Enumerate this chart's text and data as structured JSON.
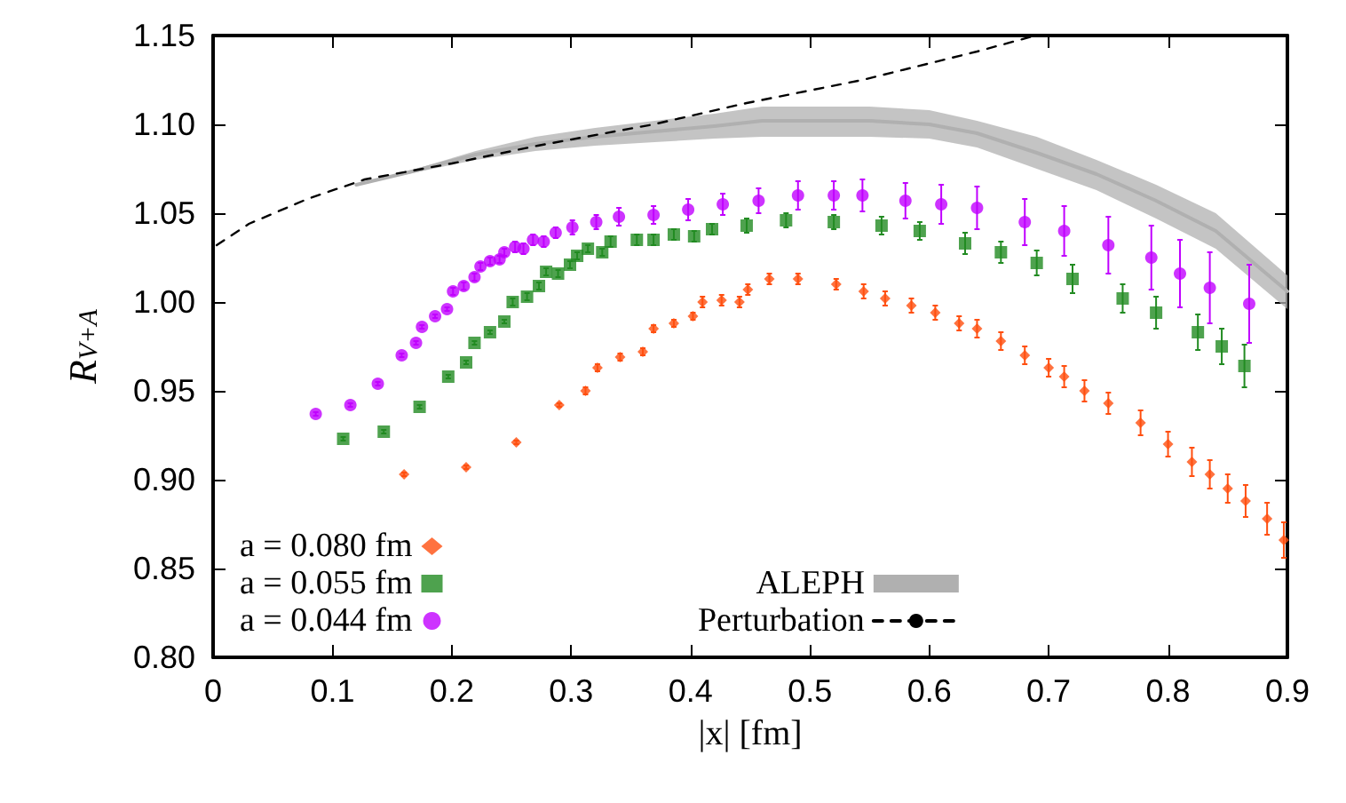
{
  "chart_data": {
    "type": "scatter",
    "xlabel": "|x| [fm]",
    "ylabel": "R$_{V+A}$",
    "xlim": [
      0,
      0.9
    ],
    "xticks": [
      0,
      0.1,
      0.2,
      0.3,
      0.4,
      0.5,
      0.6,
      0.7,
      0.8,
      0.9
    ],
    "ylim": [
      0.8,
      1.15
    ],
    "yticks": [
      {
        "value": 0.8,
        "label": "0.80"
      },
      {
        "value": 0.85,
        "label": "0.85"
      },
      {
        "value": 0.9,
        "label": "0.90"
      },
      {
        "value": 0.95,
        "label": "0.95"
      },
      {
        "value": 1.0,
        "label": "1.00"
      },
      {
        "value": 1.05,
        "label": "1.05"
      },
      {
        "value": 1.1,
        "label": "1.10"
      },
      {
        "value": 1.15,
        "label": "1.15"
      }
    ],
    "grid": false,
    "legend": "bottom left",
    "series": [
      {
        "name": "a = 0.080 fm",
        "color": "#ff4f0f",
        "marker": "diamond",
        "x": [
          0.16,
          0.212,
          0.254,
          0.29,
          0.312,
          0.322,
          0.341,
          0.36,
          0.369,
          0.386,
          0.402,
          0.41,
          0.426,
          0.441,
          0.448,
          0.466,
          0.49,
          0.522,
          0.545,
          0.563,
          0.585,
          0.605,
          0.625,
          0.64,
          0.66,
          0.68,
          0.7,
          0.713,
          0.73,
          0.75,
          0.777,
          0.8,
          0.82,
          0.835,
          0.85,
          0.865,
          0.883,
          0.897
        ],
        "values": [
          0.903,
          0.907,
          0.921,
          0.942,
          0.95,
          0.963,
          0.969,
          0.972,
          0.985,
          0.988,
          0.992,
          1.0,
          1.001,
          1.0,
          1.007,
          1.013,
          1.013,
          1.01,
          1.006,
          1.002,
          0.998,
          0.994,
          0.988,
          0.985,
          0.978,
          0.97,
          0.963,
          0.958,
          0.95,
          0.943,
          0.932,
          0.92,
          0.91,
          0.903,
          0.895,
          0.888,
          0.878,
          0.866
        ],
        "errors": [
          0.001,
          0.001,
          0.001,
          0.001,
          0.002,
          0.002,
          0.002,
          0.002,
          0.002,
          0.002,
          0.002,
          0.003,
          0.003,
          0.003,
          0.003,
          0.003,
          0.003,
          0.003,
          0.004,
          0.004,
          0.004,
          0.004,
          0.004,
          0.005,
          0.005,
          0.005,
          0.005,
          0.006,
          0.006,
          0.006,
          0.007,
          0.007,
          0.008,
          0.008,
          0.008,
          0.009,
          0.009,
          0.01
        ]
      },
      {
        "name": "a = 0.055 fm",
        "color": "#228b22",
        "marker": "square",
        "x": [
          0.109,
          0.143,
          0.173,
          0.197,
          0.212,
          0.219,
          0.232,
          0.244,
          0.251,
          0.263,
          0.273,
          0.279,
          0.289,
          0.299,
          0.305,
          0.314,
          0.326,
          0.333,
          0.355,
          0.369,
          0.386,
          0.403,
          0.418,
          0.447,
          0.48,
          0.52,
          0.56,
          0.592,
          0.63,
          0.66,
          0.69,
          0.72,
          0.762,
          0.79,
          0.825,
          0.845,
          0.864
        ],
        "values": [
          0.923,
          0.927,
          0.941,
          0.958,
          0.966,
          0.977,
          0.983,
          0.989,
          1.0,
          1.003,
          1.009,
          1.017,
          1.016,
          1.021,
          1.026,
          1.03,
          1.028,
          1.034,
          1.035,
          1.035,
          1.038,
          1.037,
          1.041,
          1.043,
          1.046,
          1.045,
          1.043,
          1.04,
          1.033,
          1.028,
          1.022,
          1.013,
          1.002,
          0.994,
          0.983,
          0.975,
          0.964
        ],
        "errors": [
          0.001,
          0.001,
          0.001,
          0.001,
          0.001,
          0.001,
          0.001,
          0.001,
          0.002,
          0.002,
          0.002,
          0.002,
          0.002,
          0.002,
          0.002,
          0.002,
          0.002,
          0.003,
          0.003,
          0.003,
          0.003,
          0.003,
          0.003,
          0.004,
          0.004,
          0.004,
          0.005,
          0.005,
          0.006,
          0.006,
          0.007,
          0.008,
          0.008,
          0.009,
          0.01,
          0.01,
          0.012
        ]
      },
      {
        "name": "a = 0.044 fm",
        "color": "#c000ff",
        "marker": "circle",
        "x": [
          0.086,
          0.115,
          0.138,
          0.158,
          0.17,
          0.175,
          0.186,
          0.196,
          0.201,
          0.21,
          0.219,
          0.224,
          0.232,
          0.24,
          0.244,
          0.253,
          0.26,
          0.268,
          0.277,
          0.287,
          0.301,
          0.321,
          0.34,
          0.369,
          0.398,
          0.427,
          0.457,
          0.49,
          0.52,
          0.544,
          0.58,
          0.61,
          0.64,
          0.68,
          0.713,
          0.75,
          0.786,
          0.81,
          0.835,
          0.868
        ],
        "values": [
          0.937,
          0.942,
          0.954,
          0.97,
          0.977,
          0.986,
          0.992,
          0.996,
          1.006,
          1.009,
          1.014,
          1.02,
          1.023,
          1.024,
          1.028,
          1.031,
          1.03,
          1.035,
          1.034,
          1.039,
          1.042,
          1.045,
          1.048,
          1.049,
          1.052,
          1.055,
          1.057,
          1.06,
          1.06,
          1.06,
          1.057,
          1.055,
          1.053,
          1.045,
          1.04,
          1.032,
          1.025,
          1.016,
          1.008,
          0.999
        ],
        "errors": [
          0.001,
          0.001,
          0.001,
          0.001,
          0.001,
          0.001,
          0.001,
          0.001,
          0.002,
          0.002,
          0.002,
          0.002,
          0.002,
          0.002,
          0.002,
          0.003,
          0.003,
          0.003,
          0.003,
          0.003,
          0.004,
          0.004,
          0.005,
          0.005,
          0.006,
          0.006,
          0.007,
          0.008,
          0.008,
          0.009,
          0.01,
          0.011,
          0.012,
          0.013,
          0.014,
          0.016,
          0.018,
          0.019,
          0.02,
          0.022
        ]
      },
      {
        "name": "ALEPH",
        "type": "line",
        "color": "#b0b0b0",
        "marker": "none",
        "x": [
          0.12,
          0.17,
          0.22,
          0.27,
          0.32,
          0.37,
          0.42,
          0.46,
          0.5,
          0.55,
          0.6,
          0.64,
          0.69,
          0.74,
          0.79,
          0.84,
          0.9
        ],
        "values": [
          1.066,
          1.074,
          1.083,
          1.089,
          1.093,
          1.096,
          1.099,
          1.102,
          1.102,
          1.102,
          1.1,
          1.095,
          1.084,
          1.072,
          1.057,
          1.04,
          1.006
        ],
        "lower": [
          1.066,
          1.073,
          1.08,
          1.085,
          1.088,
          1.09,
          1.092,
          1.093,
          1.093,
          1.093,
          1.092,
          1.087,
          1.075,
          1.063,
          1.047,
          1.03,
          0.996
        ],
        "upper": [
          1.066,
          1.075,
          1.085,
          1.093,
          1.098,
          1.102,
          1.106,
          1.11,
          1.11,
          1.11,
          1.108,
          1.102,
          1.093,
          1.08,
          1.066,
          1.05,
          1.015
        ]
      },
      {
        "name": "Perturbation",
        "type": "line",
        "color": "#000000",
        "marker": "none",
        "line_style": "dashed",
        "x": [
          0.003,
          0.03,
          0.079,
          0.127,
          0.2,
          0.272,
          0.369,
          0.447,
          0.544,
          0.64,
          0.689
        ],
        "values": [
          1.032,
          1.044,
          1.058,
          1.069,
          1.078,
          1.088,
          1.1,
          1.112,
          1.125,
          1.141,
          1.15
        ]
      }
    ]
  }
}
